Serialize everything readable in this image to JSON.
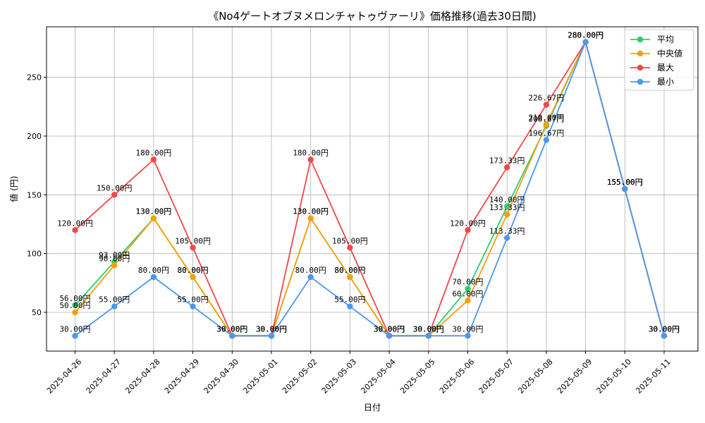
{
  "chart_data": {
    "type": "line",
    "title": "《No4ゲートオブヌメロンチャトゥヴァーリ》価格推移(過去30日間)",
    "xlabel": "日付",
    "ylabel": "値 (円)",
    "ylim": [
      17,
      293
    ],
    "yticks": [
      50,
      100,
      150,
      200,
      250
    ],
    "grid": true,
    "legend_position": "top-right",
    "value_suffix": "円",
    "categories": [
      "2025-04-26",
      "2025-04-27",
      "2025-04-28",
      "2025-04-29",
      "2025-04-30",
      "2025-05-01",
      "2025-05-02",
      "2025-05-03",
      "2025-05-04",
      "2025-05-05",
      "2025-05-06",
      "2025-05-07",
      "2025-05-08",
      "2025-05-09",
      "2025-05-10",
      "2025-05-11"
    ],
    "series": [
      {
        "name": "平均",
        "color": "#2ecc71",
        "values": [
          56,
          93,
          130,
          80,
          30,
          30,
          130,
          80,
          30,
          30,
          70,
          140,
          208.67,
          280,
          155,
          30
        ]
      },
      {
        "name": "中央値",
        "color": "#f5a00a",
        "values": [
          50,
          90,
          130,
          80,
          30,
          30,
          130,
          80,
          30,
          30,
          60,
          133.33,
          210,
          280,
          155,
          30
        ]
      },
      {
        "name": "最大",
        "color": "#f04848",
        "values": [
          120,
          150,
          180,
          105,
          30,
          30,
          180,
          105,
          30,
          30,
          120,
          173.33,
          226.67,
          280,
          155,
          30
        ]
      },
      {
        "name": "最小",
        "color": "#4a98f0",
        "values": [
          30,
          55,
          80,
          55,
          30,
          30,
          80,
          55,
          30,
          30,
          30,
          113.33,
          196.67,
          280,
          155,
          30
        ]
      }
    ]
  }
}
